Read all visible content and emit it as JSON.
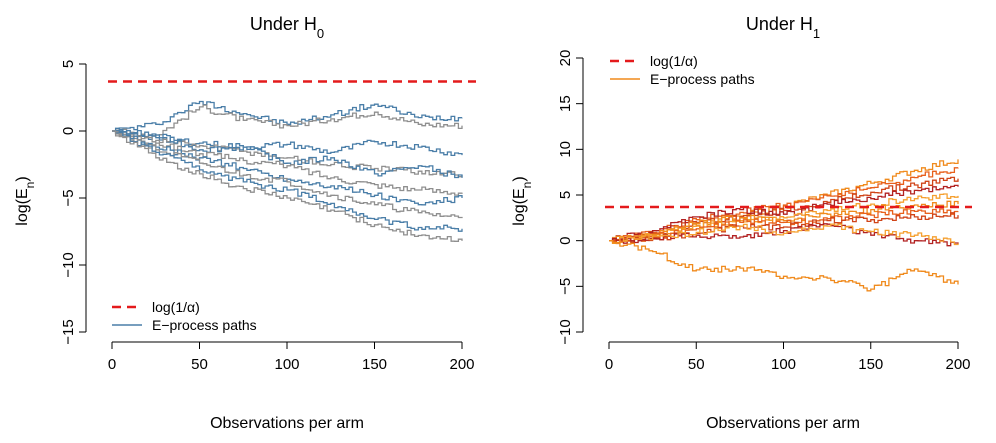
{
  "colors": {
    "threshold": "#e41a1c",
    "h0_paths": [
      "#4a7ea8",
      "#8f8f8f"
    ],
    "h1_paths": [
      "#f08a1c",
      "#e8601c",
      "#d04418",
      "#b22222",
      "#f5a030"
    ]
  },
  "chart_data": [
    {
      "type": "line",
      "title": "Under H",
      "title_sub": "0",
      "xlabel": "Observations per arm",
      "ylabel": "log(E",
      "ylabel_sub": "n",
      "ylabel_end": ")",
      "xlim": [
        0,
        200
      ],
      "ylim": [
        -15,
        5
      ],
      "xticks": [
        0,
        50,
        100,
        150,
        200
      ],
      "yticks": [
        -15,
        -10,
        -5,
        0,
        5
      ],
      "ytick_labels": [
        "−15",
        "−10",
        "−5",
        "0",
        "5"
      ],
      "threshold": 3.69,
      "legend": {
        "position": "bottom-left",
        "entries": [
          "log(1/α)",
          "E−process paths"
        ]
      },
      "series": [
        {
          "x": [
            0,
            25,
            50,
            75,
            100,
            125,
            150,
            175,
            200
          ],
          "values": [
            0,
            0.5,
            2.2,
            1.3,
            0.5,
            1.2,
            2.0,
            1.0,
            1.0
          ]
        },
        {
          "x": [
            0,
            25,
            50,
            75,
            100,
            125,
            150,
            175,
            200
          ],
          "values": [
            0,
            -0.3,
            1.8,
            0.8,
            0.4,
            0.9,
            1.4,
            0.5,
            0.4
          ]
        },
        {
          "x": [
            0,
            25,
            50,
            75,
            100,
            125,
            150,
            175,
            200
          ],
          "values": [
            0,
            -0.5,
            -0.9,
            -1.2,
            -1.0,
            -1.6,
            -0.8,
            -1.2,
            -1.8
          ]
        },
        {
          "x": [
            0,
            25,
            50,
            75,
            100,
            125,
            150,
            175,
            200
          ],
          "values": [
            0,
            -0.7,
            -1.1,
            -1.5,
            -2.0,
            -2.5,
            -2.8,
            -3.0,
            -3.3
          ]
        },
        {
          "x": [
            0,
            25,
            50,
            75,
            100,
            125,
            150,
            175,
            200
          ],
          "values": [
            0,
            -0.3,
            -1.4,
            -1.2,
            -2.4,
            -2.0,
            -3.2,
            -2.6,
            -3.5
          ]
        },
        {
          "x": [
            0,
            25,
            50,
            75,
            100,
            125,
            150,
            175,
            200
          ],
          "values": [
            0,
            -0.9,
            -1.7,
            -2.2,
            -2.6,
            -3.5,
            -4.0,
            -4.4,
            -4.6
          ]
        },
        {
          "x": [
            0,
            25,
            50,
            75,
            100,
            125,
            150,
            175,
            200
          ],
          "values": [
            0,
            -1.2,
            -2.0,
            -2.8,
            -3.6,
            -4.1,
            -4.8,
            -5.5,
            -5.0
          ]
        },
        {
          "x": [
            0,
            25,
            50,
            75,
            100,
            125,
            150,
            175,
            200
          ],
          "values": [
            0,
            -1.4,
            -2.4,
            -3.3,
            -3.8,
            -4.8,
            -5.5,
            -6.1,
            -6.5
          ]
        },
        {
          "x": [
            0,
            25,
            50,
            75,
            100,
            125,
            150,
            175,
            200
          ],
          "values": [
            0,
            -1.6,
            -2.9,
            -3.8,
            -4.4,
            -5.4,
            -6.6,
            -7.2,
            -7.3
          ]
        },
        {
          "x": [
            0,
            25,
            50,
            75,
            100,
            125,
            150,
            175,
            200
          ],
          "values": [
            0,
            -2.0,
            -3.2,
            -4.3,
            -5.0,
            -5.9,
            -7.0,
            -7.8,
            -8.2
          ]
        }
      ]
    },
    {
      "type": "line",
      "title": "Under H",
      "title_sub": "1",
      "xlabel": "Observations per arm",
      "ylabel": "log(E",
      "ylabel_sub": "n",
      "ylabel_end": ")",
      "xlim": [
        0,
        200
      ],
      "ylim": [
        -10,
        20
      ],
      "xticks": [
        0,
        50,
        100,
        150,
        200
      ],
      "yticks": [
        -10,
        -5,
        0,
        5,
        10,
        15,
        20
      ],
      "ytick_labels": [
        "−10",
        "−5",
        "0",
        "5",
        "10",
        "15",
        "20"
      ],
      "threshold": 3.69,
      "legend": {
        "position": "top-left",
        "entries": [
          "log(1/α)",
          "E−process paths"
        ]
      },
      "series": [
        {
          "x": [
            0,
            25,
            50,
            75,
            100,
            125,
            150,
            175,
            200
          ],
          "values": [
            0,
            0.6,
            1.7,
            2.7,
            3.8,
            5.0,
            6.3,
            7.7,
            8.9
          ]
        },
        {
          "x": [
            0,
            25,
            50,
            75,
            100,
            125,
            150,
            175,
            200
          ],
          "values": [
            0,
            0.9,
            2.3,
            3.1,
            3.9,
            4.9,
            5.8,
            6.9,
            8.0
          ]
        },
        {
          "x": [
            0,
            25,
            50,
            75,
            100,
            125,
            150,
            175,
            200
          ],
          "values": [
            0,
            0.8,
            2.0,
            2.6,
            3.3,
            4.2,
            5.3,
            6.1,
            6.8
          ]
        },
        {
          "x": [
            0,
            25,
            50,
            75,
            100,
            125,
            150,
            175,
            200
          ],
          "values": [
            0,
            1.1,
            2.6,
            3.4,
            2.9,
            4.0,
            4.6,
            5.5,
            5.9
          ]
        },
        {
          "x": [
            0,
            25,
            50,
            75,
            100,
            125,
            150,
            175,
            200
          ],
          "values": [
            0,
            0.5,
            1.6,
            2.2,
            2.5,
            3.3,
            4.0,
            4.6,
            4.9
          ]
        },
        {
          "x": [
            0,
            25,
            50,
            75,
            100,
            125,
            150,
            175,
            200
          ],
          "values": [
            0,
            0.7,
            1.9,
            2.5,
            2.2,
            2.9,
            3.4,
            3.9,
            4.0
          ]
        },
        {
          "x": [
            0,
            25,
            50,
            75,
            100,
            125,
            150,
            175,
            200
          ],
          "values": [
            0,
            0.4,
            1.3,
            2.0,
            2.0,
            2.4,
            2.8,
            3.2,
            3.2
          ]
        },
        {
          "x": [
            0,
            25,
            50,
            75,
            100,
            125,
            150,
            175,
            200
          ],
          "values": [
            0,
            0.3,
            0.8,
            1.6,
            1.5,
            2.2,
            2.3,
            2.6,
            2.8
          ]
        },
        {
          "x": [
            0,
            25,
            50,
            75,
            100,
            125,
            150,
            175,
            200
          ],
          "values": [
            0,
            0.2,
            0.6,
            0.4,
            1.1,
            1.8,
            0.6,
            0.0,
            -0.4
          ]
        },
        {
          "x": [
            0,
            25,
            50,
            75,
            100,
            125,
            150,
            175,
            200
          ],
          "values": [
            0,
            0.5,
            0.9,
            1.6,
            0.8,
            1.6,
            1.0,
            0.6,
            -0.3
          ]
        },
        {
          "x": [
            0,
            25,
            50,
            75,
            100,
            125,
            150,
            175,
            200
          ],
          "values": [
            0,
            -1.2,
            -3.2,
            -3.0,
            -3.9,
            -4.1,
            -5.3,
            -3.1,
            -4.8
          ]
        }
      ]
    }
  ]
}
